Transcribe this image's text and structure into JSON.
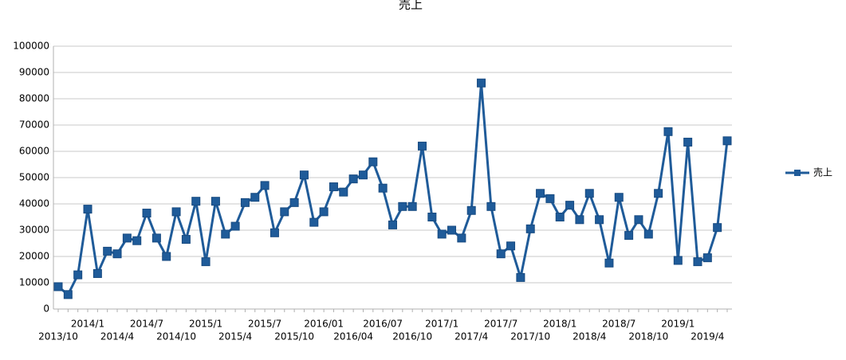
{
  "chart_data": {
    "type": "line",
    "title": "売上",
    "categories": [
      "2013/10",
      null,
      null,
      "2014/1",
      null,
      null,
      "2014/4",
      null,
      null,
      "2014/7",
      null,
      null,
      "2014/10",
      null,
      null,
      "2015/1",
      null,
      null,
      "2015/4",
      null,
      null,
      "2015/7",
      null,
      null,
      "2015/10",
      null,
      null,
      "2016/01",
      null,
      null,
      "2016/04",
      null,
      null,
      "2016/07",
      null,
      null,
      "2016/10",
      null,
      null,
      "2017/1",
      null,
      null,
      "2017/4",
      null,
      null,
      "2017/7",
      null,
      null,
      "2017/10",
      null,
      null,
      "2018/1",
      null,
      null,
      "2018/4",
      null,
      null,
      "2018/7",
      null,
      null,
      "2018/10",
      null,
      null,
      "2019/1",
      null,
      null,
      "2019/4",
      null,
      null
    ],
    "series": [
      {
        "name": "売上",
        "color": "#1f5b99",
        "values": [
          8500,
          5500,
          13000,
          38000,
          13500,
          22000,
          21000,
          27000,
          26000,
          36500,
          27000,
          20000,
          37000,
          26500,
          41000,
          18000,
          41000,
          28500,
          31500,
          40500,
          42500,
          47000,
          29000,
          37000,
          40500,
          51000,
          33000,
          37000,
          46500,
          44500,
          49500,
          51000,
          56000,
          46000,
          32000,
          39000,
          39000,
          62000,
          35000,
          28500,
          30000,
          27000,
          37500,
          86000,
          39000,
          21000,
          24000,
          12000,
          30500,
          44000,
          42000,
          35000,
          39500,
          34000,
          44000,
          34000,
          17500,
          42500,
          28000,
          34000,
          28500,
          44000,
          67500,
          18500,
          63500,
          18000,
          19500,
          31000,
          64000
        ]
      }
    ],
    "ylim": [
      0,
      100000
    ],
    "yticks": [
      0,
      10000,
      20000,
      30000,
      40000,
      50000,
      60000,
      70000,
      80000,
      90000,
      100000
    ],
    "grid": true,
    "legend": "right"
  }
}
